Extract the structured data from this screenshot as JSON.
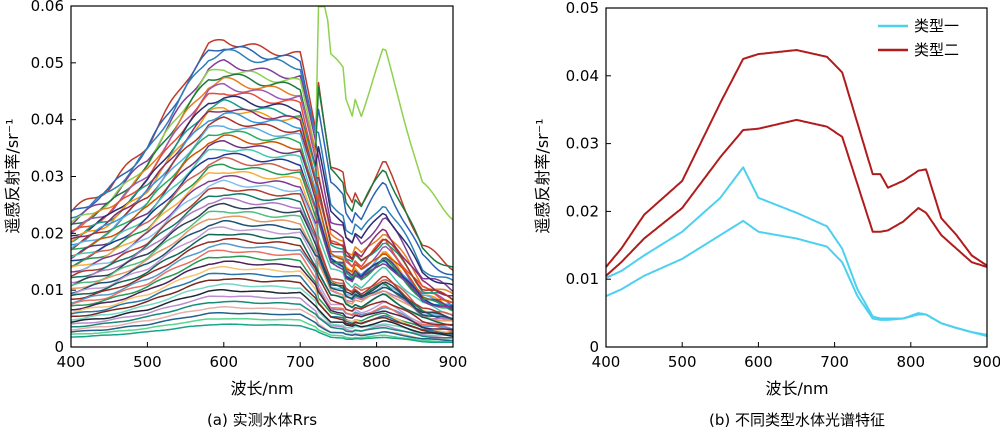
{
  "chart_data": [
    {
      "type": "line",
      "caption": "(a) 实测水体Rrs",
      "xlabel": "波长/nm",
      "ylabel": "遥感反射率/sr⁻¹",
      "xlim": [
        400,
        900
      ],
      "ylim": [
        0,
        0.06
      ],
      "xticks": [
        "400",
        "500",
        "600",
        "700",
        "800",
        "900"
      ],
      "yticks": [
        "0",
        "0.01",
        "0.02",
        "0.03",
        "0.04",
        "0.05",
        "0.06"
      ],
      "x": [
        400,
        450,
        500,
        550,
        580,
        600,
        650,
        700,
        720,
        740,
        760,
        780,
        810,
        830,
        860,
        900
      ],
      "shape": [
        0.44,
        0.52,
        0.66,
        0.87,
        0.98,
        1.0,
        0.97,
        0.95,
        0.72,
        0.45,
        0.42,
        0.36,
        0.46,
        0.38,
        0.25,
        0.2
      ],
      "series_note": "many measured spectra",
      "series": [
        {
          "peak": 0.054,
          "color": "#c0392b",
          "nir": 0.55
        },
        {
          "peak": 0.053,
          "color": "#2c62b4",
          "nir": 0.5
        },
        {
          "peak": 0.052,
          "color": "#2c7fb8",
          "nir": 0.45
        },
        {
          "peak": 0.05,
          "color": "#7e3f98",
          "nir": 0.42
        },
        {
          "peak": 0.049,
          "color": "#8fd14f",
          "nir": 0.98
        },
        {
          "peak": 0.048,
          "color": "#1b7a3e",
          "nir": 0.6
        },
        {
          "peak": 0.047,
          "color": "#e67e22",
          "nir": 0.4
        },
        {
          "peak": 0.046,
          "color": "#9b59b6",
          "nir": 0.35
        },
        {
          "peak": 0.045,
          "color": "#e74c3c",
          "nir": 0.38
        },
        {
          "peak": 0.044,
          "color": "#2b2d6e",
          "nir": 0.5
        },
        {
          "peak": 0.043,
          "color": "#16a085",
          "nir": 0.4
        },
        {
          "peak": 0.042,
          "color": "#f39c12",
          "nir": 0.36
        },
        {
          "peak": 0.042,
          "color": "#8e2c6e",
          "nir": 0.45
        },
        {
          "peak": 0.041,
          "color": "#3498db",
          "nir": 0.35
        },
        {
          "peak": 0.04,
          "color": "#a93226",
          "nir": 0.44
        },
        {
          "peak": 0.039,
          "color": "#5dade2",
          "nir": 0.38
        },
        {
          "peak": 0.038,
          "color": "#27ae60",
          "nir": 0.37
        },
        {
          "peak": 0.037,
          "color": "#d35400",
          "nir": 0.42
        },
        {
          "peak": 0.036,
          "color": "#6c3483",
          "nir": 0.4
        },
        {
          "peak": 0.035,
          "color": "#48c9b0",
          "nir": 0.36
        },
        {
          "peak": 0.034,
          "color": "#1f3a93",
          "nir": 0.42
        },
        {
          "peak": 0.033,
          "color": "#cd6155",
          "nir": 0.34
        },
        {
          "peak": 0.032,
          "color": "#229954",
          "nir": 0.44
        },
        {
          "peak": 0.031,
          "color": "#f5b041",
          "nir": 0.33
        },
        {
          "peak": 0.03,
          "color": "#7d3c98",
          "nir": 0.46
        },
        {
          "peak": 0.029,
          "color": "#85c1e9",
          "nir": 0.35
        },
        {
          "peak": 0.028,
          "color": "#b03a2e",
          "nir": 0.4
        },
        {
          "peak": 0.027,
          "color": "#117a65",
          "nir": 0.38
        },
        {
          "peak": 0.026,
          "color": "#af7ac5",
          "nir": 0.36
        },
        {
          "peak": 0.025,
          "color": "#2e4053",
          "nir": 0.42
        },
        {
          "peak": 0.024,
          "color": "#52be80",
          "nir": 0.35
        },
        {
          "peak": 0.023,
          "color": "#e59866",
          "nir": 0.4
        },
        {
          "peak": 0.022,
          "color": "#1a5276",
          "nir": 0.45
        },
        {
          "peak": 0.021,
          "color": "#c39bd3",
          "nir": 0.34
        },
        {
          "peak": 0.02,
          "color": "#0e6655",
          "nir": 0.42
        },
        {
          "peak": 0.019,
          "color": "#922b21",
          "nir": 0.4
        },
        {
          "peak": 0.018,
          "color": "#5499c7",
          "nir": 0.36
        },
        {
          "peak": 0.017,
          "color": "#ec7063",
          "nir": 0.38
        },
        {
          "peak": 0.016,
          "color": "#239b56",
          "nir": 0.34
        },
        {
          "peak": 0.015,
          "color": "#4a235a",
          "nir": 0.4
        },
        {
          "peak": 0.014,
          "color": "#f8c471",
          "nir": 0.36
        },
        {
          "peak": 0.013,
          "color": "#2874a6",
          "nir": 0.38
        },
        {
          "peak": 0.012,
          "color": "#78281f",
          "nir": 0.4
        },
        {
          "peak": 0.011,
          "color": "#76d7c4",
          "nir": 0.35
        },
        {
          "peak": 0.01,
          "color": "#1c2833",
          "nir": 0.42
        },
        {
          "peak": 0.009,
          "color": "#bb8fce",
          "nir": 0.38
        },
        {
          "peak": 0.008,
          "color": "#138d75",
          "nir": 0.4
        },
        {
          "peak": 0.007,
          "color": "#e6b0aa",
          "nir": 0.36
        },
        {
          "peak": 0.006,
          "color": "#21618c",
          "nir": 0.4
        },
        {
          "peak": 0.005,
          "color": "#58d68d",
          "nir": 0.38
        },
        {
          "peak": 0.004,
          "color": "#17a589",
          "nir": 0.4
        }
      ]
    },
    {
      "type": "line",
      "caption": "(b) 不同类型水体光谱特征",
      "xlabel": "波长/nm",
      "ylabel": "遥感反射率/sr⁻¹",
      "xlim": [
        400,
        900
      ],
      "ylim": [
        0,
        0.05
      ],
      "xticks": [
        "400",
        "500",
        "600",
        "700",
        "800",
        "900"
      ],
      "yticks": [
        "0",
        "0.01",
        "0.02",
        "0.03",
        "0.04",
        "0.05"
      ],
      "legend_position": "top-right",
      "legend": [
        {
          "label": "类型一",
          "color": "#4dd0f0"
        },
        {
          "label": "类型二",
          "color": "#b01c1c"
        }
      ],
      "x": [
        400,
        420,
        450,
        500,
        550,
        580,
        600,
        650,
        690,
        710,
        730,
        750,
        760,
        770,
        790,
        810,
        820,
        840,
        860,
        880,
        900
      ],
      "series": [
        {
          "name": "类型一",
          "color": "#4dd0f0",
          "values": [
            0.0102,
            0.0112,
            0.0135,
            0.017,
            0.022,
            0.0265,
            0.022,
            0.0198,
            0.0178,
            0.0145,
            0.0085,
            0.0045,
            0.0042,
            0.0042,
            0.0042,
            0.0048,
            0.0048,
            0.0035,
            0.0028,
            0.0022,
            0.0016
          ]
        },
        {
          "name": "类型一",
          "color": "#4dd0f0",
          "values": [
            0.0075,
            0.0085,
            0.0105,
            0.013,
            0.0165,
            0.0186,
            0.017,
            0.016,
            0.0148,
            0.0125,
            0.0075,
            0.0042,
            0.004,
            0.004,
            0.0042,
            0.005,
            0.0048,
            0.0035,
            0.0028,
            0.0022,
            0.0018
          ]
        },
        {
          "name": "类型二",
          "color": "#b01c1c",
          "values": [
            0.0118,
            0.0145,
            0.0195,
            0.0245,
            0.036,
            0.0425,
            0.0432,
            0.0438,
            0.0428,
            0.0405,
            0.033,
            0.0255,
            0.0255,
            0.0235,
            0.0245,
            0.026,
            0.0262,
            0.019,
            0.0165,
            0.0135,
            0.012
          ]
        },
        {
          "name": "类型二",
          "color": "#b01c1c",
          "values": [
            0.0105,
            0.0125,
            0.016,
            0.0205,
            0.028,
            0.032,
            0.0322,
            0.0335,
            0.0325,
            0.031,
            0.024,
            0.017,
            0.017,
            0.0172,
            0.0185,
            0.0205,
            0.0198,
            0.0165,
            0.0145,
            0.0125,
            0.0118
          ]
        }
      ]
    }
  ]
}
